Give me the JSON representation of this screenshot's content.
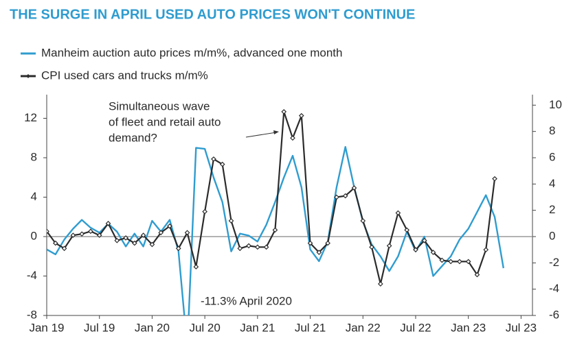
{
  "chart_data": {
    "type": "line",
    "title": "THE SURGE IN APRIL USED AUTO PRICES WON'T CONTINUE",
    "x": [
      0,
      1,
      2,
      3,
      4,
      5,
      6,
      7,
      8,
      9,
      10,
      11,
      12,
      13,
      14,
      15,
      16,
      17,
      18,
      19,
      20,
      21,
      22,
      23,
      24,
      25,
      26,
      27,
      28,
      29,
      30,
      31,
      32,
      33,
      34,
      35,
      36,
      37,
      38,
      39,
      40,
      41,
      42,
      43,
      44,
      45,
      46,
      47,
      48,
      49,
      50,
      51,
      52
    ],
    "xlim": [
      0,
      55.3
    ],
    "xticks": [
      {
        "value": 0,
        "label": "Jan 19"
      },
      {
        "value": 6,
        "label": "Jul 19"
      },
      {
        "value": 12,
        "label": "Jan 20"
      },
      {
        "value": 18,
        "label": "Jul 20"
      },
      {
        "value": 24,
        "label": "Jan 21"
      },
      {
        "value": 30,
        "label": "Jul 21"
      },
      {
        "value": 36,
        "label": "Jan 22"
      },
      {
        "value": 42,
        "label": "Jul 22"
      },
      {
        "value": 48,
        "label": "Jan 23"
      },
      {
        "value": 54,
        "label": "Jul 23"
      }
    ],
    "ylim": [
      -8,
      14.4
    ],
    "yticks": [
      -8,
      -4,
      0,
      4,
      8,
      12
    ],
    "y2lim": [
      -6,
      10.8
    ],
    "y2ticks": [
      -6,
      -4,
      -2,
      0,
      2,
      4,
      6,
      8,
      10
    ],
    "series": [
      {
        "name": "Manheim auction auto prices m/m%, advanced one month",
        "color": "#2f9ccf",
        "values": [
          -1.3,
          -1.8,
          -0.3,
          0.8,
          1.7,
          0.9,
          0.4,
          1.3,
          0.5,
          -1.0,
          0.3,
          -1.0,
          1.6,
          0.5,
          1.7,
          -1.5,
          -11.3,
          9.0,
          8.9,
          6.0,
          3.5,
          -1.5,
          0.3,
          0.1,
          -0.5,
          1.2,
          3.5,
          6.0,
          8.2,
          5.0,
          -1.3,
          -2.5,
          -0.5,
          5.0,
          9.1,
          5.0,
          1.5,
          -0.8,
          -2.0,
          -3.5,
          -2.0,
          0.5,
          -1.5,
          0.0,
          -4.0,
          -3.0,
          -2.0,
          -0.3,
          0.8,
          2.5,
          4.2,
          2.0,
          -3.2
        ]
      },
      {
        "name": "CPI used cars and trucks m/m%",
        "color": "#2b2b2b",
        "axis": "y2",
        "values": [
          0.4,
          -0.5,
          -0.9,
          0.1,
          0.2,
          0.4,
          0.1,
          1.0,
          -0.3,
          -0.1,
          -0.5,
          0.1,
          -0.6,
          0.3,
          0.8,
          -0.9,
          0.3,
          -2.3,
          1.9,
          5.9,
          5.5,
          1.2,
          -0.9,
          -0.7,
          -0.8,
          -0.8,
          0.5,
          9.5,
          7.5,
          9.2,
          -0.5,
          -1.2,
          -0.5,
          3.0,
          3.1,
          3.7,
          1.2,
          -0.8,
          -3.6,
          -0.7,
          1.8,
          0.5,
          -1.0,
          -0.3,
          -1.2,
          -1.8,
          -1.9,
          -1.9,
          -1.9,
          -2.9,
          -1.0,
          4.4,
          null
        ]
      }
    ],
    "annotations": [
      {
        "lines": [
          "Simultaneous wave",
          "of fleet and retail auto",
          "demand?"
        ]
      },
      {
        "lines": [
          "-11.3% April 2020"
        ]
      }
    ]
  }
}
